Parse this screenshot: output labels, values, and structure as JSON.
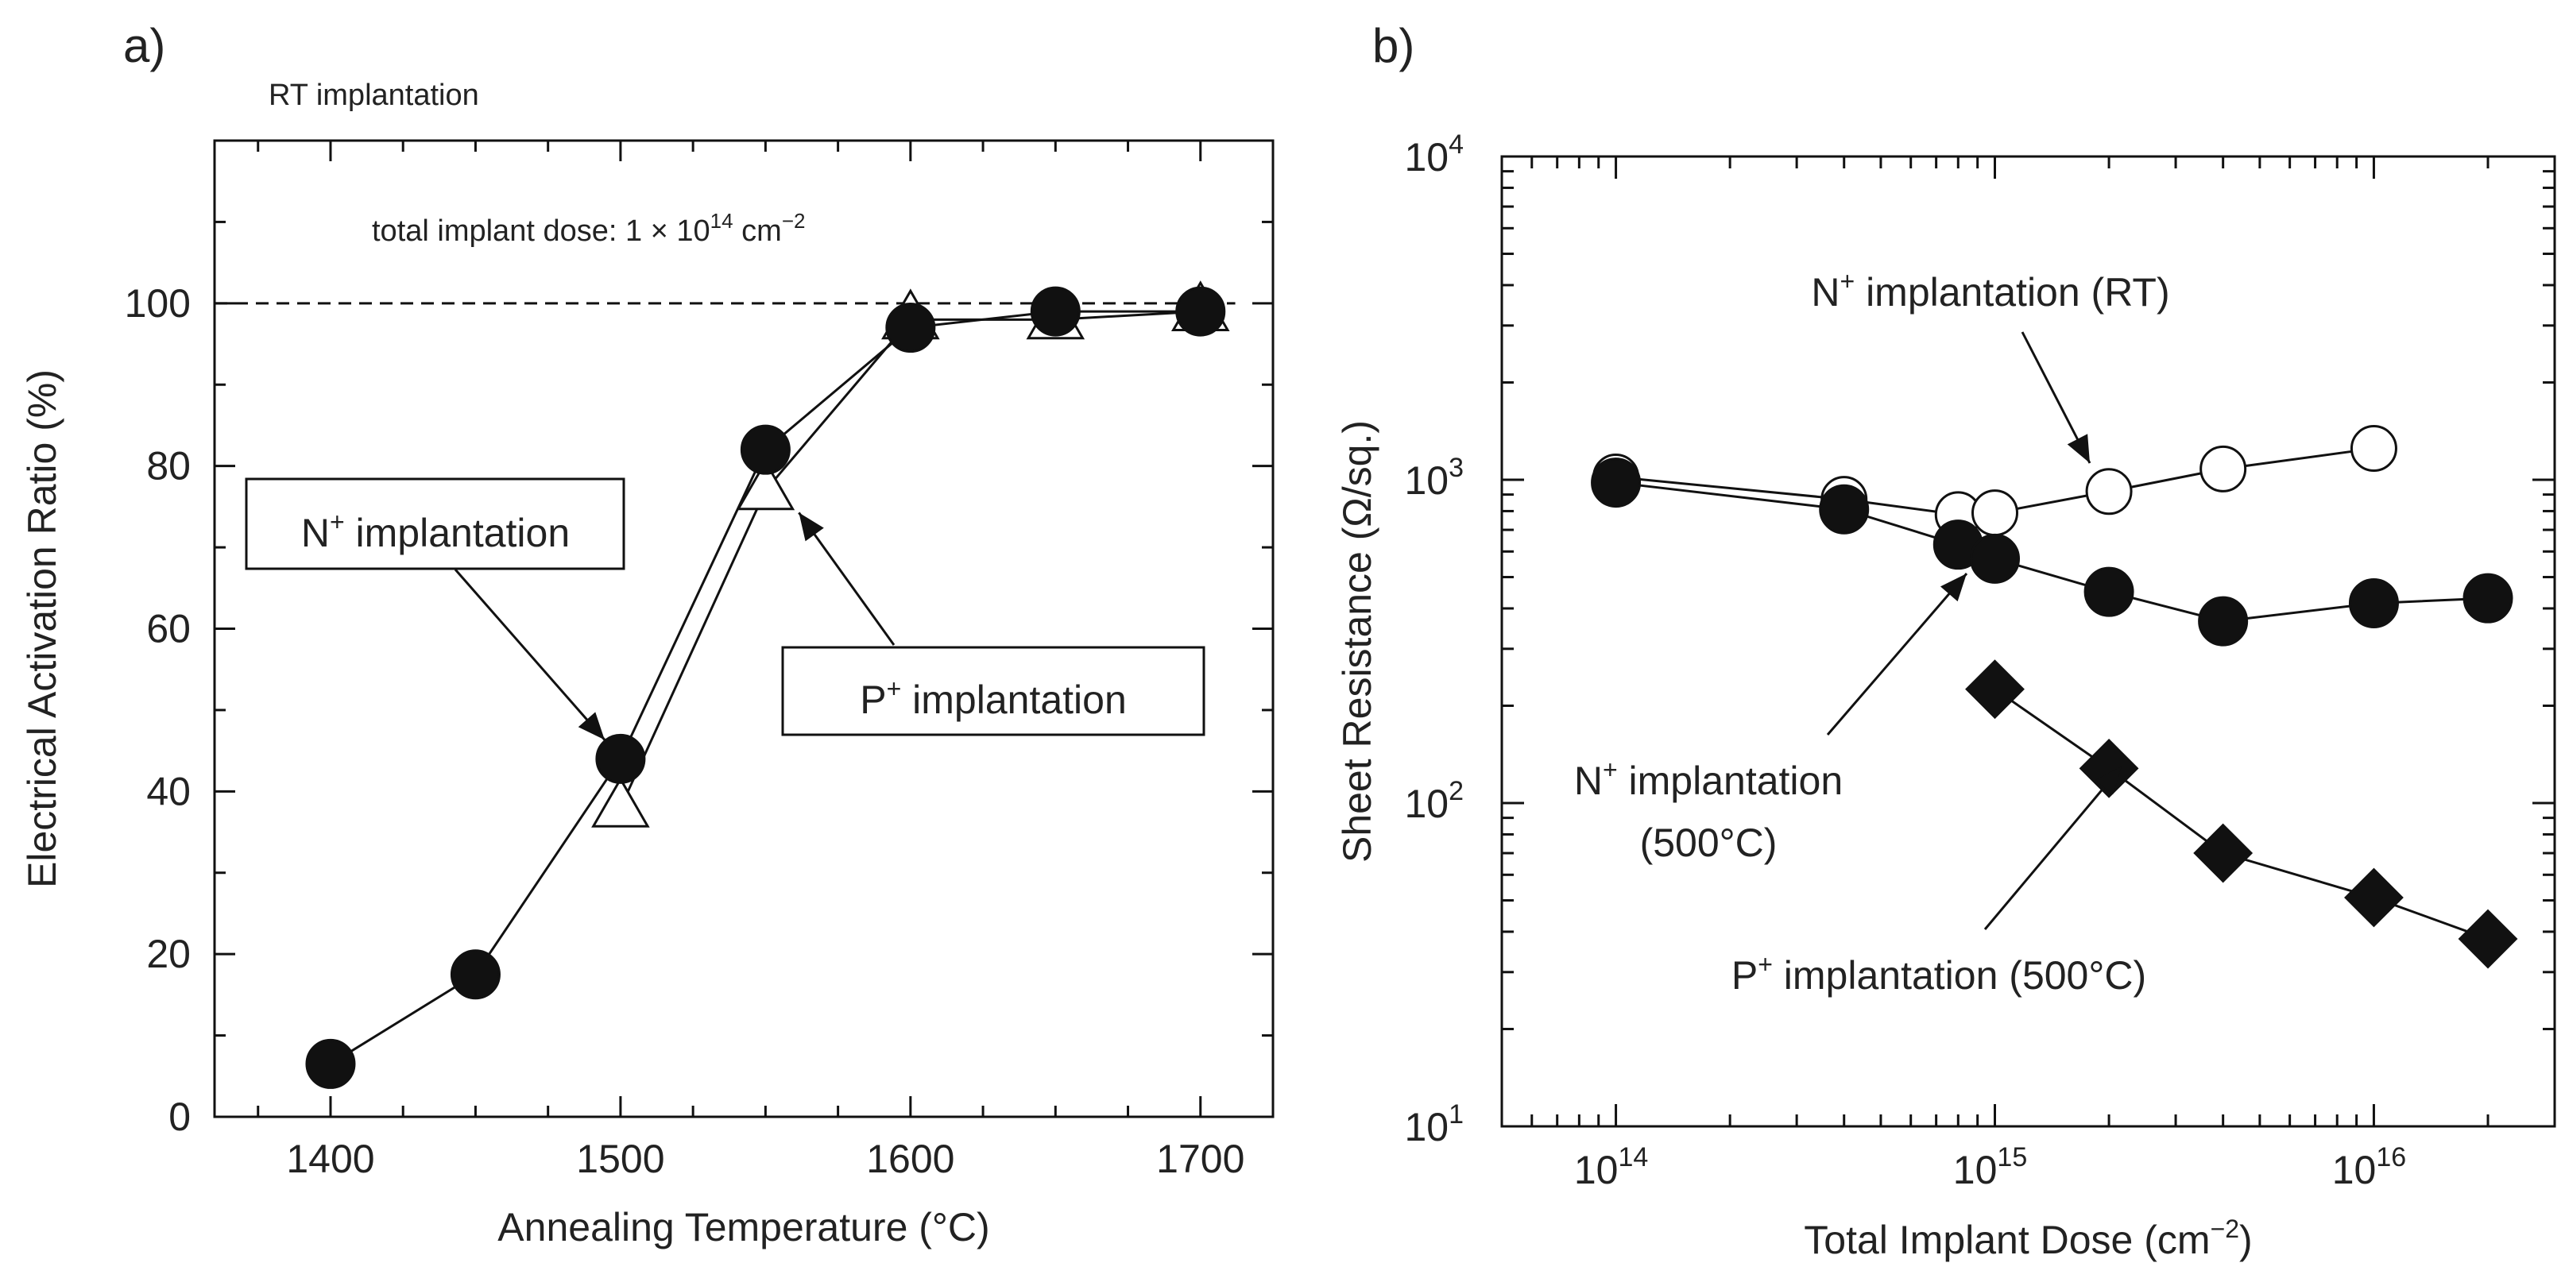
{
  "chart_data": [
    {
      "panel": "a)",
      "type": "line",
      "subtitle": "RT implantation",
      "annotation": "total implant dose: 1 × 10",
      "annotation_exp": "14",
      "annotation_unit": " cm",
      "annotation_unit_exp": "−2",
      "xlabel": "Annealing Temperature (°C)",
      "ylabel": "Electrical Activation Ratio (%)",
      "xlim": [
        1360,
        1725
      ],
      "ylim": [
        0,
        120
      ],
      "xticks": [
        1400,
        1500,
        1600,
        1700
      ],
      "yticks": [
        0,
        20,
        40,
        60,
        80,
        100
      ],
      "reference_line": 100,
      "series": [
        {
          "name": "N+ implantation",
          "label_base": "N",
          "label_sup": "+",
          "label_rest": " implantation",
          "marker": "filled-circle",
          "x": [
            1400,
            1450,
            1500,
            1550,
            1600,
            1650,
            1700
          ],
          "values": [
            6.5,
            17.5,
            44,
            82,
            97,
            99,
            99
          ]
        },
        {
          "name": "P+ implantation",
          "label_base": "P",
          "label_sup": "+",
          "label_rest": " implantation",
          "marker": "open-triangle",
          "x": [
            1500,
            1550,
            1600,
            1650,
            1700
          ],
          "values": [
            38,
            77,
            98,
            98,
            99
          ]
        }
      ]
    },
    {
      "panel": "b)",
      "type": "line",
      "xscale": "log",
      "yscale": "log",
      "xlabel_base": "Total Implant Dose (cm",
      "xlabel_exp": "−2",
      "xlabel_end": ")",
      "ylabel": "Sheet Resistance (Ω/sq.)",
      "xlim": [
        50000000000000.0,
        3e+16
      ],
      "ylim": [
        10,
        10000
      ],
      "xtick_base": "10",
      "xtick_exps": [
        "14",
        "15",
        "16"
      ],
      "ytick_base": "10",
      "ytick_exps": [
        "1",
        "2",
        "3",
        "4"
      ],
      "series": [
        {
          "name": "N+ implantation (RT)",
          "label_base": "N",
          "label_sup": "+",
          "label_rest": " implantation (RT)",
          "marker": "open-circle",
          "x": [
            100000000000000.0,
            400000000000000.0,
            800000000000000.0,
            1000000000000000.0,
            2000000000000000.0,
            4000000000000000.0,
            1e+16
          ],
          "values": [
            1020,
            870,
            780,
            790,
            920,
            1080,
            1250
          ]
        },
        {
          "name": "N+ implantation (500°C)",
          "label_base": "N",
          "label_sup": "+",
          "label_rest": " implantation",
          "label_line2": "(500°C)",
          "marker": "filled-circle",
          "x": [
            100000000000000.0,
            400000000000000.0,
            800000000000000.0,
            1000000000000000.0,
            2000000000000000.0,
            4000000000000000.0,
            1e+16,
            2e+16
          ],
          "values": [
            980,
            810,
            630,
            570,
            450,
            365,
            415,
            430
          ]
        },
        {
          "name": "P+ implantation (500°C)",
          "label_base": "P",
          "label_sup": "+",
          "label_rest": " implantation (500°C)",
          "marker": "filled-diamond",
          "x": [
            1000000000000000.0,
            2000000000000000.0,
            4000000000000000.0,
            1e+16,
            2e+16
          ],
          "values": [
            225,
            128,
            70,
            51,
            38
          ]
        }
      ]
    }
  ]
}
